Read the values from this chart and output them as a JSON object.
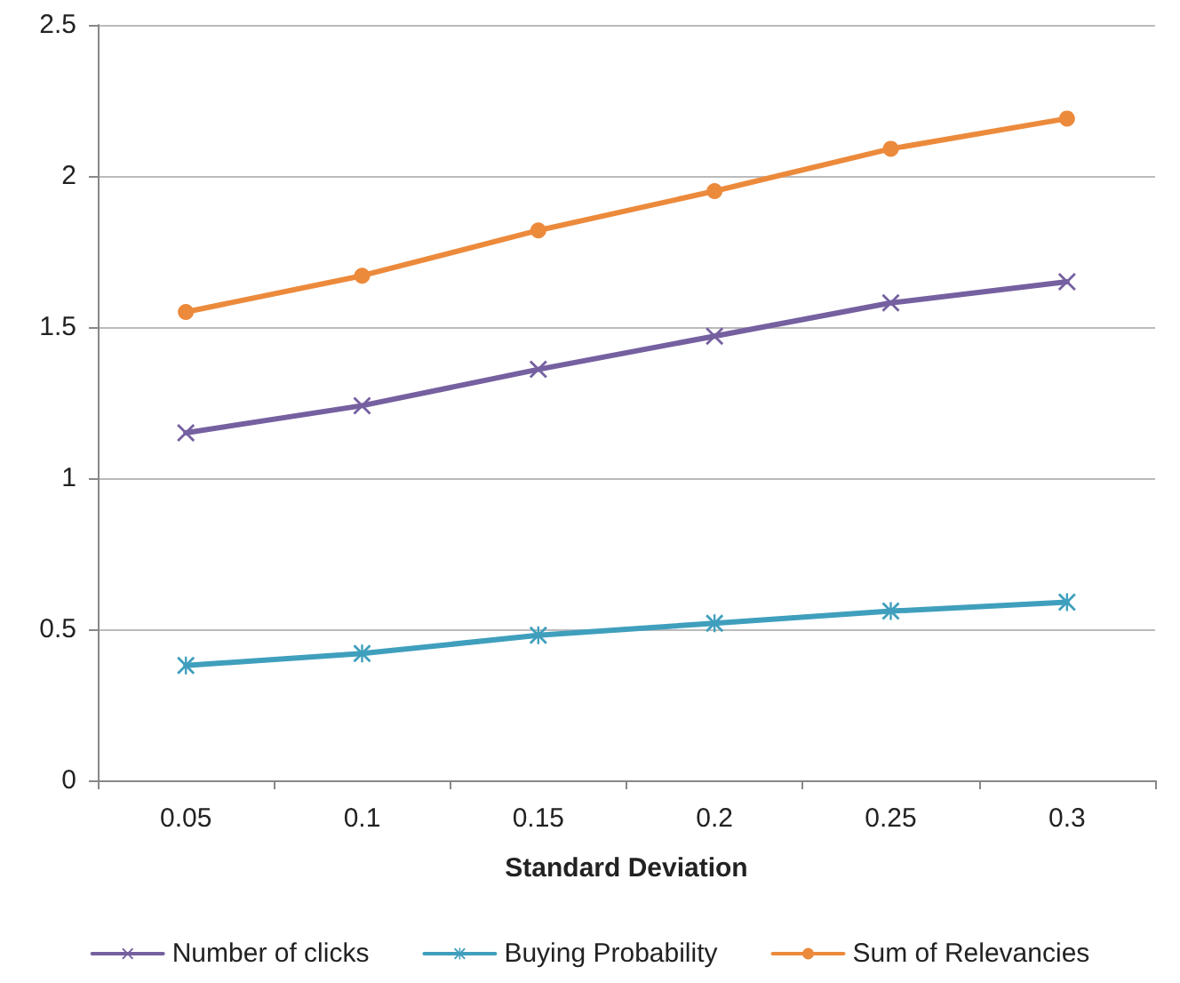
{
  "chart_data": {
    "type": "line",
    "xlabel": "Standard Deviation",
    "categories": [
      "0.05",
      "0.1",
      "0.15",
      "0.2",
      "0.25",
      "0.3"
    ],
    "series": [
      {
        "name": "Number of clicks",
        "color": "#7560a0",
        "marker": "cross",
        "values": [
          1.15,
          1.24,
          1.36,
          1.47,
          1.58,
          1.65
        ]
      },
      {
        "name": "Buying Probability",
        "color": "#3f9fbd",
        "marker": "star",
        "values": [
          0.38,
          0.42,
          0.48,
          0.52,
          0.56,
          0.59
        ]
      },
      {
        "name": "Sum of Relevancies",
        "color": "#ec8a3c",
        "marker": "circle",
        "values": [
          1.55,
          1.67,
          1.82,
          1.95,
          2.09,
          2.19
        ]
      }
    ],
    "ylim": [
      0,
      2.5
    ],
    "yticks": [
      0,
      0.5,
      1,
      1.5,
      2,
      2.5
    ],
    "grid": "y",
    "legend": "bottom",
    "line_style": "solid"
  }
}
